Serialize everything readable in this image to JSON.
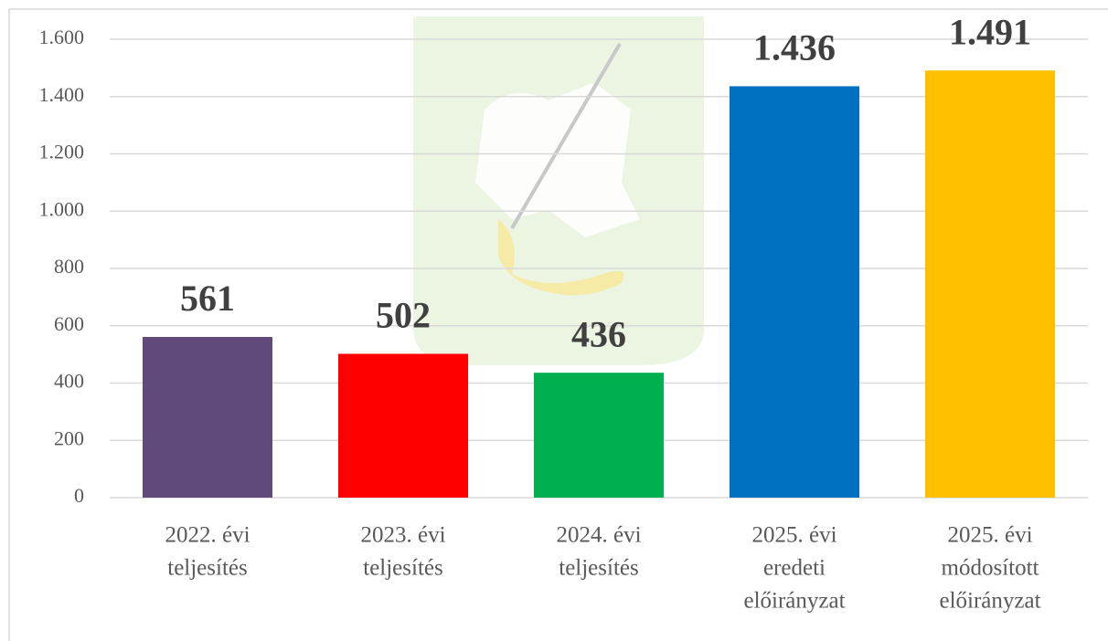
{
  "chart_data": {
    "type": "bar",
    "categories": [
      [
        "2022. évi",
        "teljesítés"
      ],
      [
        "2023. évi",
        "teljesítés"
      ],
      [
        "2024. évi",
        "teljesítés"
      ],
      [
        "2025. évi",
        "eredeti",
        "előirányzat"
      ],
      [
        "2025. évi",
        "módosított",
        "előirányzat"
      ]
    ],
    "values": [
      561,
      502,
      436,
      1436,
      1491
    ],
    "value_labels": [
      "561",
      "502",
      "436",
      "1.436",
      "1.491"
    ],
    "colors": [
      "#604A7B",
      "#FF0000",
      "#00B050",
      "#0070C0",
      "#FFC000"
    ],
    "ylim": [
      0,
      1600
    ],
    "yticks": [
      0,
      200,
      400,
      600,
      800,
      {
        "value": 1000,
        "label": "1.000"
      },
      {
        "value": 1200,
        "label": "1.200"
      },
      {
        "value": 1400,
        "label": "1.400"
      },
      {
        "value": 1600,
        "label": "1.600"
      }
    ],
    "grid": true
  }
}
